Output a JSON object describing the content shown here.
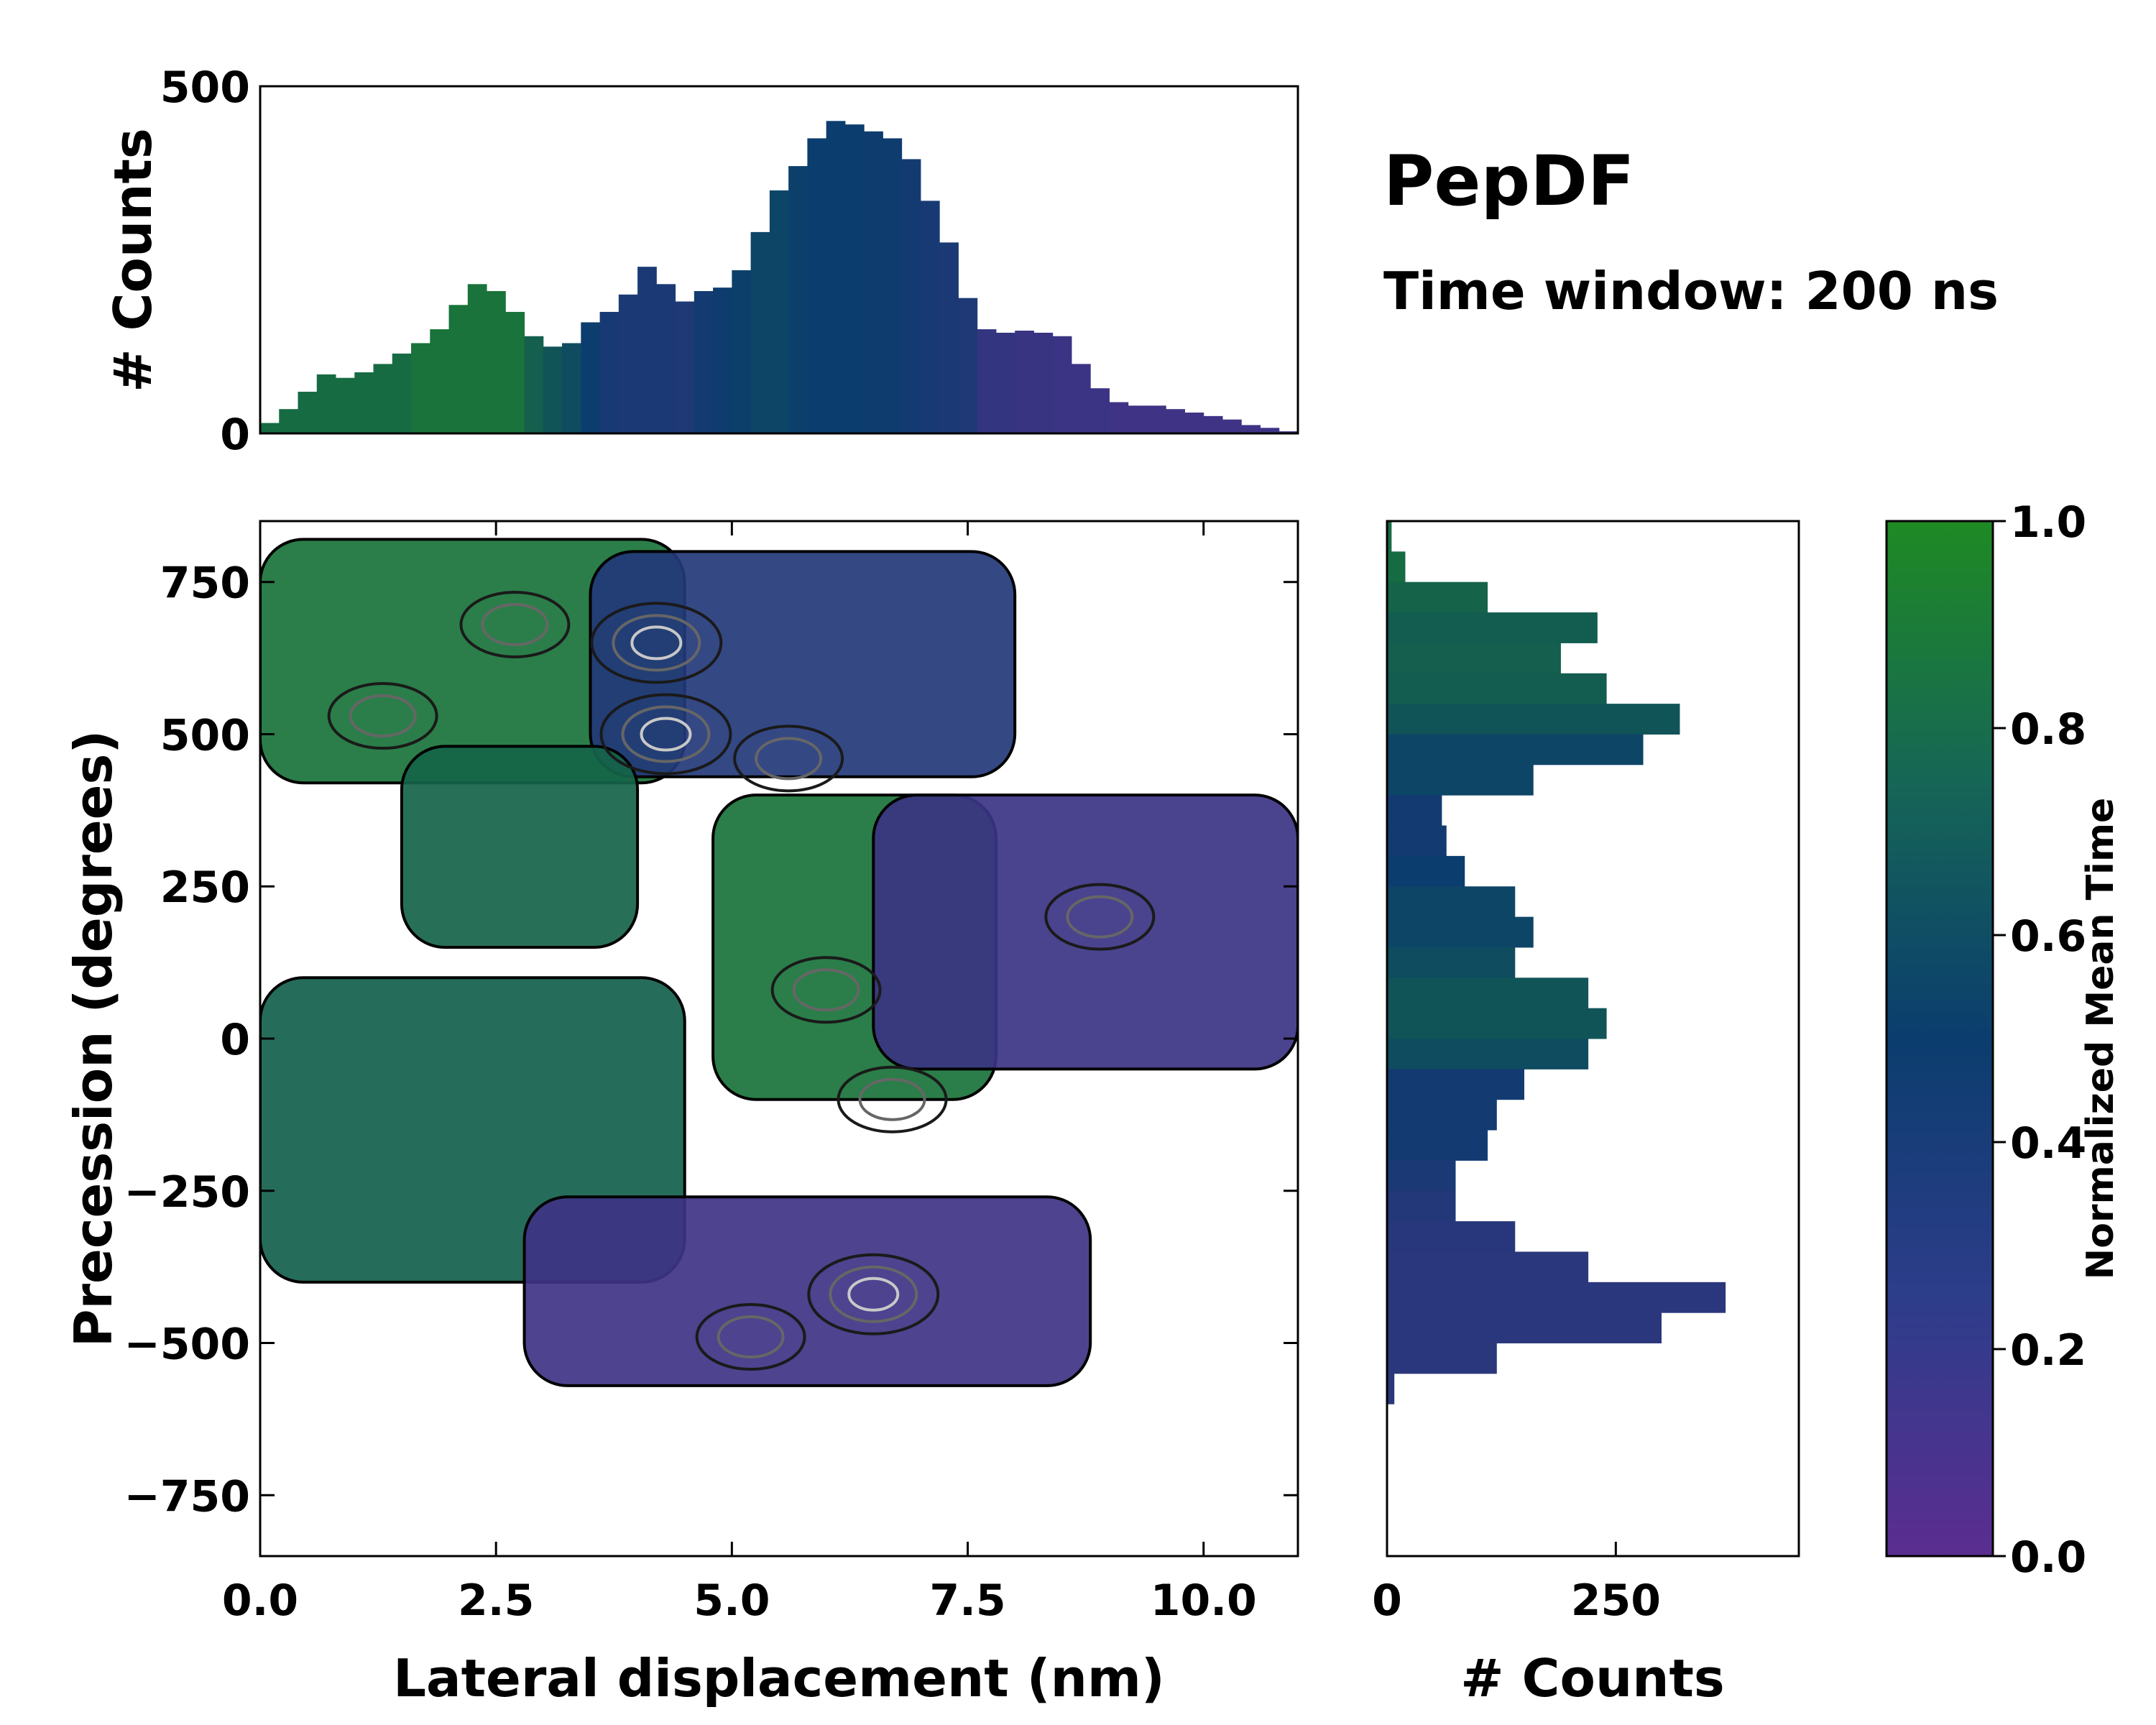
{
  "title": "PepDF",
  "subtitle": "Time window: 200 ns",
  "colors": {
    "low": "#5b2d91",
    "mid": "#0b3d6e",
    "high": "#1f8a24",
    "contour_dark": "#1a1a1a",
    "contour_mid": "#666666",
    "contour_light": "#c8c8c8"
  },
  "chart_data": [
    {
      "id": "top-histogram",
      "type": "bar",
      "xlim": [
        0,
        11
      ],
      "ylim": [
        0,
        500
      ],
      "ylabel": "# Counts",
      "ytick_labels": [
        "0",
        "500"
      ],
      "yticks": [
        0,
        500
      ],
      "color_by": "Normalized Mean Time",
      "x": [
        0.1,
        0.3,
        0.5,
        0.7,
        0.9,
        1.1,
        1.3,
        1.5,
        1.7,
        1.9,
        2.1,
        2.3,
        2.5,
        2.7,
        2.9,
        3.1,
        3.3,
        3.5,
        3.7,
        3.9,
        4.1,
        4.3,
        4.5,
        4.7,
        4.9,
        5.1,
        5.3,
        5.5,
        5.7,
        5.9,
        6.1,
        6.3,
        6.5,
        6.7,
        6.9,
        7.1,
        7.3,
        7.5,
        7.7,
        7.9,
        8.1,
        8.3,
        8.5,
        8.7,
        8.9,
        9.1,
        9.3,
        9.5,
        9.7,
        9.9,
        10.1,
        10.3,
        10.5,
        10.7,
        10.9
      ],
      "values": [
        15,
        35,
        60,
        85,
        80,
        88,
        100,
        115,
        130,
        150,
        185,
        215,
        205,
        175,
        140,
        125,
        130,
        160,
        175,
        200,
        240,
        215,
        190,
        205,
        210,
        235,
        290,
        350,
        385,
        425,
        450,
        445,
        435,
        425,
        395,
        335,
        275,
        195,
        150,
        145,
        148,
        145,
        140,
        100,
        65,
        45,
        40,
        40,
        35,
        30,
        25,
        20,
        12,
        8,
        3
      ],
      "mean_time": [
        0.8,
        0.8,
        0.8,
        0.8,
        0.8,
        0.8,
        0.8,
        0.8,
        0.85,
        0.85,
        0.85,
        0.85,
        0.85,
        0.85,
        0.72,
        0.65,
        0.6,
        0.5,
        0.42,
        0.4,
        0.4,
        0.4,
        0.38,
        0.45,
        0.48,
        0.52,
        0.55,
        0.55,
        0.52,
        0.5,
        0.5,
        0.5,
        0.48,
        0.48,
        0.45,
        0.42,
        0.4,
        0.38,
        0.25,
        0.25,
        0.22,
        0.22,
        0.2,
        0.2,
        0.2,
        0.18,
        0.18,
        0.18,
        0.18,
        0.18,
        0.18,
        0.18,
        0.18,
        0.18,
        0.18
      ]
    },
    {
      "id": "main-heatmap",
      "type": "heatmap",
      "xlabel": "Lateral displacement (nm)",
      "ylabel": "Precession (degrees)",
      "xlim": [
        0,
        11
      ],
      "ylim": [
        -850,
        850
      ],
      "xticks": [
        0,
        2.5,
        5,
        7.5,
        10
      ],
      "xtick_labels": [
        "0.0",
        "2.5",
        "5.0",
        "7.5",
        "10.0"
      ],
      "yticks": [
        -750,
        -500,
        -250,
        0,
        250,
        500,
        750
      ],
      "ytick_labels": [
        "−750",
        "−500",
        "−250",
        "0",
        "250",
        "500",
        "750"
      ],
      "color_metric": "Normalized Mean Time",
      "regions": [
        {
          "name": "upper-left band",
          "x": [
            0,
            4.5
          ],
          "y": [
            420,
            820
          ],
          "mean_time": 0.85
        },
        {
          "name": "upper-right lobe",
          "x": [
            3.5,
            8
          ],
          "y": [
            430,
            800
          ],
          "mean_time": 0.35
        },
        {
          "name": "mid-left green arm",
          "x": [
            1.5,
            4
          ],
          "y": [
            150,
            480
          ],
          "mean_time": 0.75
        },
        {
          "name": "central green",
          "x": [
            4.8,
            7.8
          ],
          "y": [
            -100,
            400
          ],
          "mean_time": 0.85
        },
        {
          "name": "right purple lobe",
          "x": [
            6.5,
            11
          ],
          "y": [
            -50,
            400
          ],
          "mean_time": 0.2
        },
        {
          "name": "lower-left green",
          "x": [
            0,
            4.5
          ],
          "y": [
            -400,
            100
          ],
          "mean_time": 0.72
        },
        {
          "name": "lower purple band",
          "x": [
            2.8,
            8.8
          ],
          "y": [
            -570,
            -260
          ],
          "mean_time": 0.18
        }
      ],
      "density_peaks": [
        {
          "x": 4.2,
          "y": 650,
          "level": "high"
        },
        {
          "x": 6.5,
          "y": -420,
          "level": "high"
        },
        {
          "x": 4.3,
          "y": 500,
          "level": "high"
        },
        {
          "x": 1.3,
          "y": 530,
          "level": "medium"
        },
        {
          "x": 2.7,
          "y": 680,
          "level": "medium"
        },
        {
          "x": 5.6,
          "y": 460,
          "level": "medium"
        },
        {
          "x": 8.9,
          "y": 200,
          "level": "medium"
        },
        {
          "x": 6.0,
          "y": 80,
          "level": "medium"
        },
        {
          "x": 6.7,
          "y": -100,
          "level": "medium"
        },
        {
          "x": 5.2,
          "y": -490,
          "level": "medium"
        }
      ]
    },
    {
      "id": "right-histogram",
      "type": "bar",
      "orientation": "horizontal",
      "xlabel": "# Counts",
      "xlim": [
        0,
        450
      ],
      "xticks": [
        0,
        250
      ],
      "xtick_labels": [
        "0",
        "250"
      ],
      "y": [
        825,
        775,
        725,
        675,
        625,
        575,
        525,
        475,
        425,
        375,
        325,
        275,
        225,
        175,
        125,
        75,
        25,
        -25,
        -75,
        -125,
        -175,
        -225,
        -275,
        -325,
        -375,
        -425,
        -475,
        -525,
        -575
      ],
      "values": [
        5,
        20,
        110,
        230,
        190,
        240,
        320,
        280,
        160,
        60,
        65,
        85,
        140,
        160,
        140,
        220,
        240,
        220,
        150,
        120,
        110,
        75,
        75,
        140,
        220,
        370,
        300,
        120,
        8
      ],
      "mean_time": [
        0.8,
        0.8,
        0.75,
        0.7,
        0.72,
        0.7,
        0.65,
        0.55,
        0.55,
        0.45,
        0.45,
        0.5,
        0.55,
        0.55,
        0.6,
        0.65,
        0.65,
        0.6,
        0.45,
        0.45,
        0.45,
        0.4,
        0.35,
        0.32,
        0.3,
        0.3,
        0.3,
        0.3,
        0.3
      ]
    }
  ],
  "colorbar": {
    "label": "Normalized Mean Time",
    "ticks": [
      0,
      0.2,
      0.4,
      0.6,
      0.8,
      1.0
    ],
    "tick_labels": [
      "0.0",
      "0.2",
      "0.4",
      "0.6",
      "0.8",
      "1.0"
    ]
  }
}
